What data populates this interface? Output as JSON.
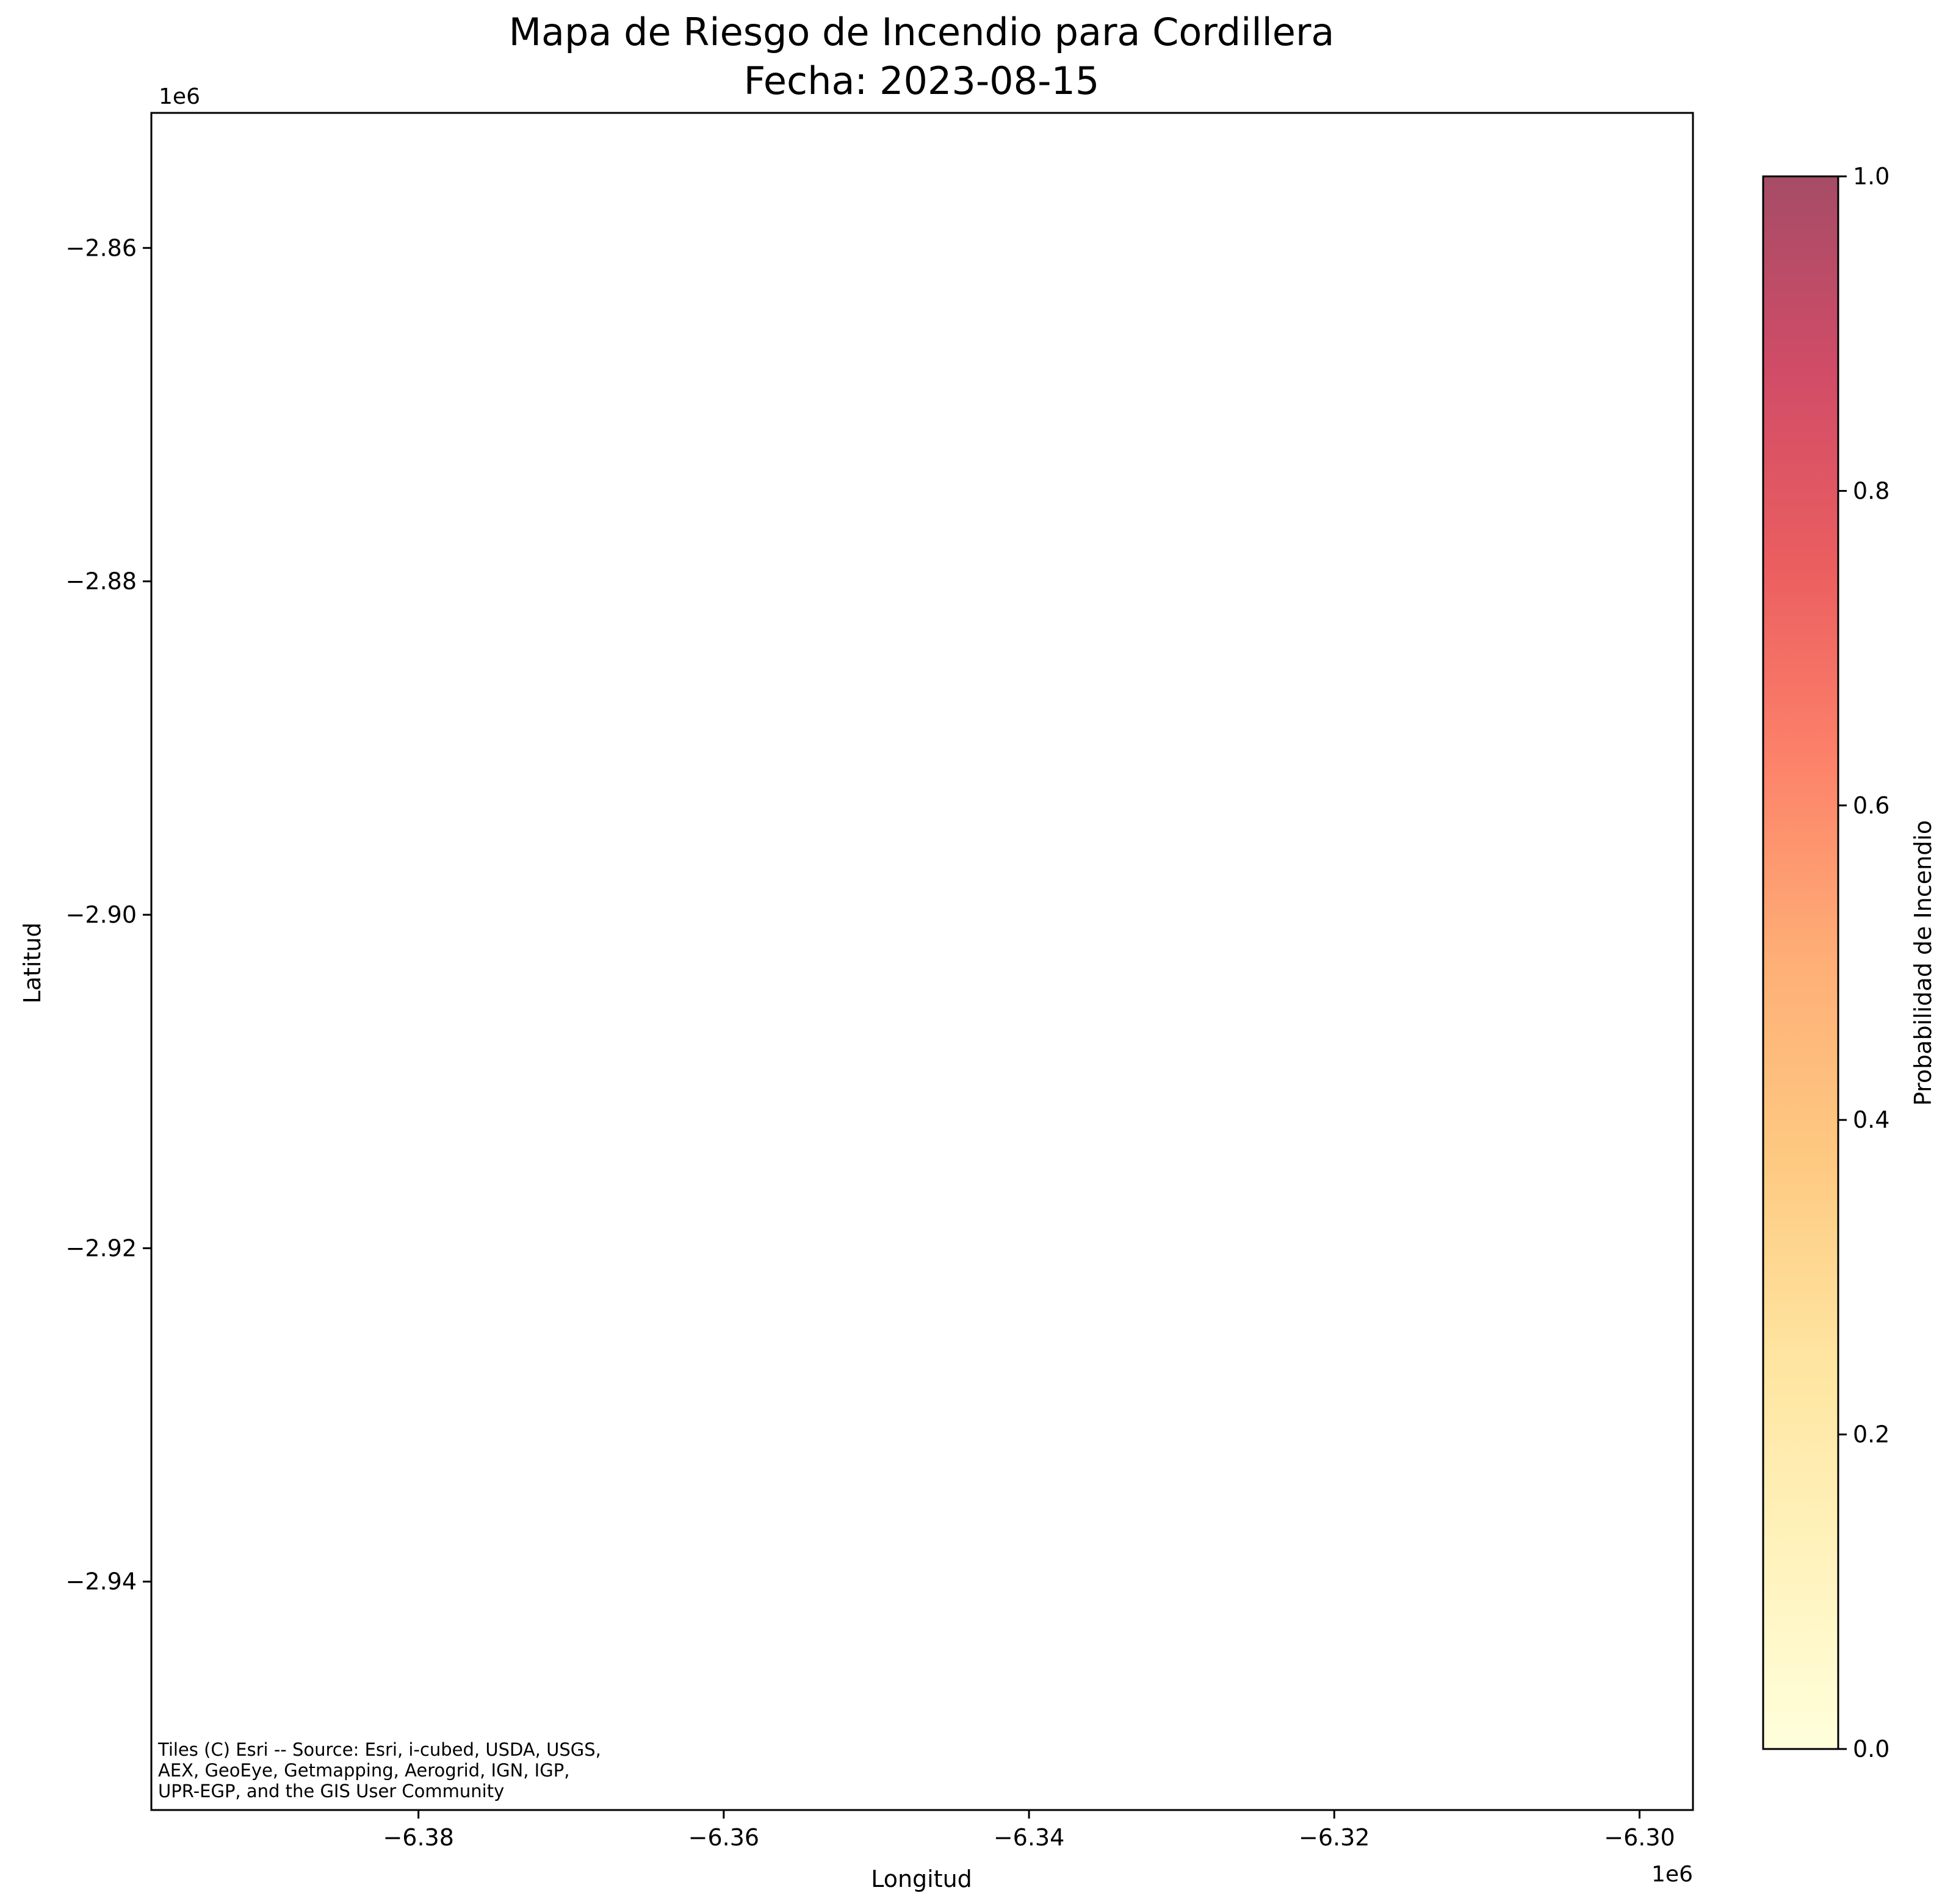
{
  "chart_data": {
    "type": "heatmap",
    "title": "Mapa de Riesgo de Incendio para Cordillera",
    "subtitle": "Fecha: 2023-08-15",
    "xlabel": "Longitud",
    "ylabel": "Latitud",
    "x_offset_label": "1e6",
    "y_offset_label": "1e6",
    "xlim": [
      -6.3975,
      -6.2965
    ],
    "ylim": [
      -2.9537,
      -2.8519
    ],
    "xticks": [
      {
        "value": -6.38,
        "label": "−6.38"
      },
      {
        "value": -6.36,
        "label": "−6.36"
      },
      {
        "value": -6.34,
        "label": "−6.34"
      },
      {
        "value": -6.32,
        "label": "−6.32"
      },
      {
        "value": -6.3,
        "label": "−6.30"
      }
    ],
    "yticks": [
      {
        "value": -2.86,
        "label": "−2.86"
      },
      {
        "value": -2.88,
        "label": "−2.88"
      },
      {
        "value": -2.9,
        "label": "−2.90"
      },
      {
        "value": -2.92,
        "label": "−2.92"
      },
      {
        "value": -2.94,
        "label": "−2.94"
      }
    ],
    "attribution": [
      "Tiles (C) Esri -- Source: Esri, i-cubed, USDA, USGS,",
      "AEX, GeoEye, Getmapping, Aerogrid, IGN, IGP,",
      "UPR-EGP, and the GIS User Community"
    ],
    "colorbar": {
      "label": "Probabilidad de Incendio",
      "range": [
        0.0,
        1.0
      ],
      "ticks": [
        {
          "value": 0.0,
          "label": "0.0"
        },
        {
          "value": 0.2,
          "label": "0.2"
        },
        {
          "value": 0.4,
          "label": "0.4"
        },
        {
          "value": 0.6,
          "label": "0.6"
        },
        {
          "value": 0.8,
          "label": "0.8"
        },
        {
          "value": 1.0,
          "label": "1.0"
        }
      ],
      "stops": [
        {
          "value": 0.0,
          "color": "#ffffcc"
        },
        {
          "value": 0.125,
          "color": "#ffeda0"
        },
        {
          "value": 0.25,
          "color": "#fed976"
        },
        {
          "value": 0.375,
          "color": "#feb24c"
        },
        {
          "value": 0.5,
          "color": "#fd8d3c"
        },
        {
          "value": 0.625,
          "color": "#fc4e2a"
        },
        {
          "value": 0.75,
          "color": "#e31a1c"
        },
        {
          "value": 0.875,
          "color": "#bd0026"
        },
        {
          "value": 1.0,
          "color": "#800026"
        }
      ],
      "alpha": 0.7
    }
  }
}
